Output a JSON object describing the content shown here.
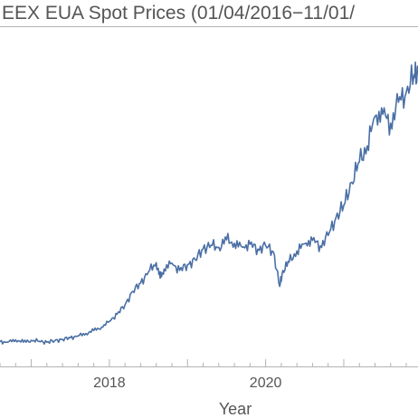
{
  "chart_data": {
    "type": "line",
    "title": "EEX EUA Spot Prices (01/04/2016−11/01/",
    "xlabel": "Year",
    "ylabel": "",
    "x_ticks": [
      "2018",
      "2020"
    ],
    "x_tick_years": [
      2018,
      2020
    ],
    "xlim": [
      2016.6,
      2021.95
    ],
    "ylim": [
      0,
      70
    ],
    "grid": false,
    "series": [
      {
        "color": "#4a6fa5",
        "x": [
          2016.6,
          2016.7,
          2016.8,
          2016.9,
          2017.0,
          2017.1,
          2017.2,
          2017.3,
          2017.4,
          2017.5,
          2017.6,
          2017.7,
          2017.8,
          2017.9,
          2018.0,
          2018.1,
          2018.2,
          2018.3,
          2018.4,
          2018.5,
          2018.6,
          2018.65,
          2018.7,
          2018.8,
          2018.9,
          2019.0,
          2019.1,
          2019.2,
          2019.3,
          2019.4,
          2019.5,
          2019.6,
          2019.7,
          2019.8,
          2019.9,
          2020.0,
          2020.1,
          2020.18,
          2020.22,
          2020.3,
          2020.4,
          2020.5,
          2020.6,
          2020.7,
          2020.8,
          2020.9,
          2021.0,
          2021.1,
          2021.2,
          2021.3,
          2021.4,
          2021.5,
          2021.6,
          2021.7,
          2021.8,
          2021.9,
          2021.95
        ],
        "y": [
          5.1,
          5.0,
          5.5,
          5.0,
          5.4,
          5.2,
          5.0,
          5.3,
          5.6,
          5.9,
          6.3,
          6.8,
          7.4,
          8.1,
          9.3,
          10.8,
          12.7,
          15.5,
          17.2,
          19.5,
          21.4,
          18.2,
          20.1,
          21.3,
          19.8,
          21.0,
          22.0,
          24.3,
          25.0,
          24.6,
          26.1,
          25.4,
          24.6,
          25.2,
          24.2,
          24.9,
          23.6,
          16.5,
          19.8,
          21.5,
          23.8,
          25.3,
          26.0,
          24.9,
          27.0,
          30.7,
          33.2,
          38.0,
          42.2,
          45.5,
          51.6,
          52.0,
          50.2,
          54.5,
          56.6,
          60.2,
          60.3
        ]
      }
    ]
  }
}
